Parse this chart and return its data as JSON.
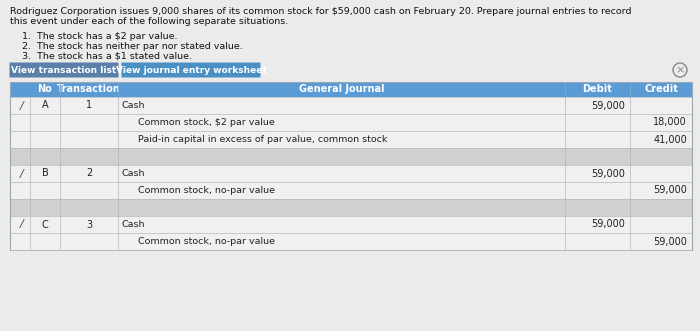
{
  "title_line1": "Rodriguez Corporation issues 9,000 shares of its common stock for $59,000 cash on February 20. Prepare journal entries to record",
  "title_line2": "this event under each of the following separate situations.",
  "bullets": [
    "1.  The stock has a $2 par value.",
    "2.  The stock has neither par nor stated value.",
    "3.  The stock has a $1 stated value."
  ],
  "btn1": "View transaction list",
  "btn2": "View journal entry worksheet",
  "col_headers": [
    "No",
    "Transaction",
    "General Journal",
    "Debit",
    "Credit"
  ],
  "rows": [
    {
      "no": "A",
      "trans": "1",
      "journal": "Cash",
      "debit": "59,000",
      "credit": "",
      "indent": false,
      "pencil": true,
      "bg": "white"
    },
    {
      "no": "",
      "trans": "",
      "journal": "Common stock, $2 par value",
      "debit": "",
      "credit": "18,000",
      "indent": true,
      "pencil": false,
      "bg": "white"
    },
    {
      "no": "",
      "trans": "",
      "journal": "Paid-in capital in excess of par value, common stock",
      "debit": "",
      "credit": "41,000",
      "indent": true,
      "pencil": false,
      "bg": "white"
    },
    {
      "no": "",
      "trans": "",
      "journal": "",
      "debit": "",
      "credit": "",
      "indent": false,
      "pencil": false,
      "bg": "light"
    },
    {
      "no": "B",
      "trans": "2",
      "journal": "Cash",
      "debit": "59,000",
      "credit": "",
      "indent": false,
      "pencil": true,
      "bg": "white"
    },
    {
      "no": "",
      "trans": "",
      "journal": "Common stock, no-par value",
      "debit": "",
      "credit": "59,000",
      "indent": true,
      "pencil": false,
      "bg": "white"
    },
    {
      "no": "",
      "trans": "",
      "journal": "",
      "debit": "",
      "credit": "",
      "indent": false,
      "pencil": false,
      "bg": "light"
    },
    {
      "no": "C",
      "trans": "3",
      "journal": "Cash",
      "debit": "59,000",
      "credit": "",
      "indent": false,
      "pencil": true,
      "bg": "white"
    },
    {
      "no": "",
      "trans": "",
      "journal": "Common stock, no-par value",
      "debit": "",
      "credit": "59,000",
      "indent": true,
      "pencil": false,
      "bg": "white"
    }
  ],
  "page_bg": "#dcdcdc",
  "content_bg": "#ebebeb",
  "header_bg": "#5b9bd5",
  "header_text": "#ffffff",
  "btn1_bg": "#5a7fa8",
  "btn2_bg": "#4a90c4",
  "btn_text": "#ffffff",
  "row_alt_bg": "#d0d0d0",
  "row_white_bg": "#f0f0f0",
  "row_separator": "#b0b8c0",
  "table_border": "#9aaab5",
  "pencil_color": "#4a4a4a",
  "close_btn_color": "#888888",
  "text_color": "#222222",
  "title_color": "#111111"
}
